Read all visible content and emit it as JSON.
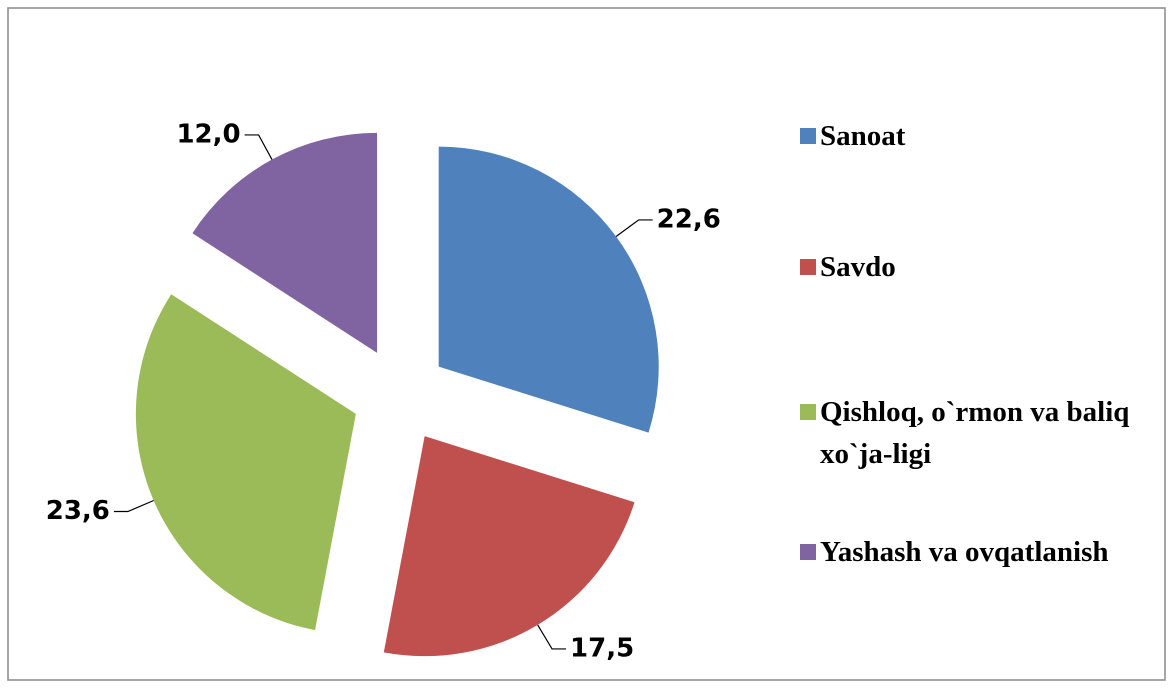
{
  "chart_data": {
    "type": "pie",
    "categories": [
      "Sanoat",
      "Savdo",
      "Qishloq, o`rmon va baliq xo`ja-ligi",
      "Yashash va ovqatlanish"
    ],
    "values": [
      22.6,
      17.5,
      23.6,
      12.0
    ],
    "value_labels": [
      "22,6",
      "17,5",
      "23,6",
      "12,0"
    ],
    "colors": [
      "#4f81bd",
      "#c0504d",
      "#9bbb59",
      "#8064a2"
    ],
    "legend": "right"
  }
}
